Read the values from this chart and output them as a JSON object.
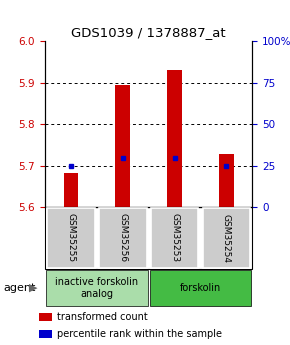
{
  "title": "GDS1039 / 1378887_at",
  "samples": [
    "GSM35255",
    "GSM35256",
    "GSM35253",
    "GSM35254"
  ],
  "bar_values": [
    5.682,
    5.895,
    5.93,
    5.728
  ],
  "blue_marker_values": [
    5.7,
    5.718,
    5.718,
    5.7
  ],
  "ylim_left": [
    5.6,
    6.0
  ],
  "ylim_right": [
    0,
    100
  ],
  "yticks_left": [
    5.6,
    5.7,
    5.8,
    5.9,
    6.0
  ],
  "yticks_right": [
    0,
    25,
    50,
    75,
    100
  ],
  "ytick_labels_right": [
    "0",
    "25",
    "50",
    "75",
    "100%"
  ],
  "bar_color": "#cc0000",
  "blue_color": "#0000cc",
  "bar_bottom": 5.6,
  "groups": [
    {
      "label": "inactive forskolin\nanalog",
      "samples": [
        0,
        1
      ],
      "color": "#aaddaa"
    },
    {
      "label": "forskolin",
      "samples": [
        2,
        3
      ],
      "color": "#44bb44"
    }
  ],
  "agent_label": "agent",
  "legend_items": [
    {
      "color": "#cc0000",
      "label": "transformed count"
    },
    {
      "color": "#0000cc",
      "label": "percentile rank within the sample"
    }
  ],
  "background_color": "#ffffff",
  "label_area_color": "#cccccc",
  "bar_width": 0.28,
  "title_fontsize": 9.5,
  "tick_fontsize": 7.5,
  "sample_fontsize": 6.5,
  "legend_fontsize": 7,
  "group_fontsize": 7
}
